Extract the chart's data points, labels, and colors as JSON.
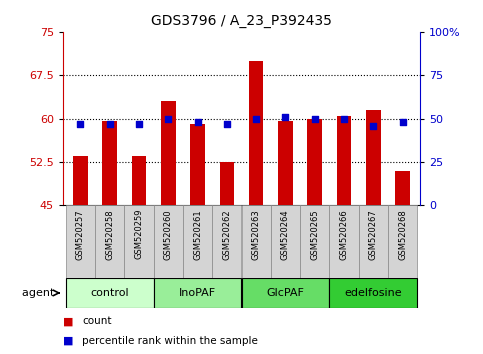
{
  "title": "GDS3796 / A_23_P392435",
  "samples": [
    "GSM520257",
    "GSM520258",
    "GSM520259",
    "GSM520260",
    "GSM520261",
    "GSM520262",
    "GSM520263",
    "GSM520264",
    "GSM520265",
    "GSM520266",
    "GSM520267",
    "GSM520268"
  ],
  "counts": [
    53.5,
    59.5,
    53.5,
    63.0,
    59.0,
    52.5,
    70.0,
    59.5,
    60.0,
    60.5,
    61.5,
    51.0
  ],
  "percentiles": [
    47,
    47,
    47,
    50,
    48,
    47,
    50,
    51,
    50,
    50,
    46,
    48
  ],
  "bar_color": "#cc0000",
  "percentile_color": "#0000cc",
  "ylim": [
    45,
    75
  ],
  "y2lim": [
    0,
    100
  ],
  "yticks": [
    45,
    52.5,
    60,
    67.5,
    75
  ],
  "ytick_labels": [
    "45",
    "52.5",
    "60",
    "67.5",
    "75"
  ],
  "y2ticks": [
    0,
    25,
    50,
    75,
    100
  ],
  "y2tick_labels": [
    "0",
    "25",
    "50",
    "75",
    "100%"
  ],
  "grid_lines": [
    52.5,
    60,
    67.5
  ],
  "groups": [
    {
      "label": "control",
      "start": 0,
      "end": 3,
      "color": "#ccffcc"
    },
    {
      "label": "InoPAF",
      "start": 3,
      "end": 6,
      "color": "#99ee99"
    },
    {
      "label": "GlcPAF",
      "start": 6,
      "end": 9,
      "color": "#66dd66"
    },
    {
      "label": "edelfosine",
      "start": 9,
      "end": 12,
      "color": "#33cc33"
    }
  ],
  "agent_label": "agent",
  "legend_count_label": "count",
  "legend_percentile_label": "percentile rank within the sample",
  "title_fontsize": 10,
  "tick_fontsize": 8,
  "sample_fontsize": 6,
  "group_fontsize": 8,
  "legend_fontsize": 7.5,
  "bar_width": 0.5,
  "sample_bg_color": "#d4d4d4",
  "sample_border_color": "#888888"
}
